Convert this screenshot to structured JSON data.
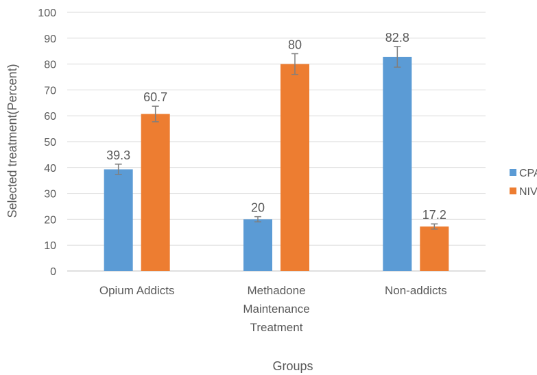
{
  "chart_data": {
    "type": "bar",
    "categories": [
      [
        "Opium Addicts"
      ],
      [
        "Methadone",
        "Maintenance",
        "Treatment"
      ],
      [
        "Non-addicts"
      ]
    ],
    "series": [
      {
        "name": "CPAP",
        "color": "#5b9bd5",
        "values": [
          39.3,
          20,
          82.8
        ],
        "error": [
          2,
          1,
          4
        ]
      },
      {
        "name": "NIV",
        "color": "#ed7d31",
        "values": [
          60.7,
          80,
          17.2
        ],
        "error": [
          3,
          4,
          1
        ]
      }
    ],
    "data_labels": [
      [
        "39.3",
        "20",
        "82.8"
      ],
      [
        "60.7",
        "80",
        "17.2"
      ]
    ],
    "xlabel": "Groups",
    "ylabel": "Selected treatment(Percent)",
    "ylim": [
      0,
      100
    ],
    "yticks": [
      "0",
      "10",
      "20",
      "30",
      "40",
      "50",
      "60",
      "70",
      "80",
      "90",
      "100"
    ],
    "grid": true,
    "legend": "right"
  }
}
